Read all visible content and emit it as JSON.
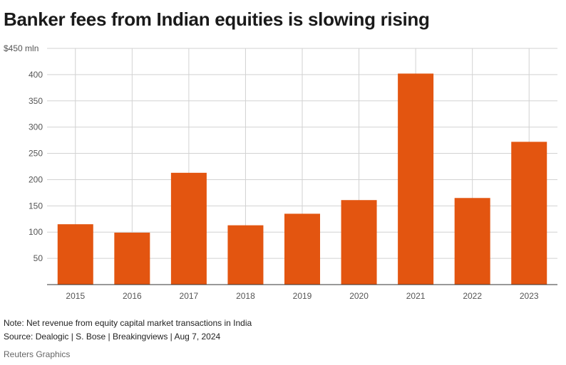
{
  "title": "Banker fees from Indian equities is slowing rising",
  "note": "Note: Net revenue from equity capital market transactions in India",
  "source": "Source: Dealogic | S. Bose | Breakingviews | Aug 7, 2024",
  "credit": "Reuters Graphics",
  "colors": {
    "bar": "#e35510",
    "grid": "#d2d2d2",
    "axis": "#333333",
    "tick_text": "#555555"
  },
  "chart_data": {
    "type": "bar",
    "categories": [
      "2015",
      "2016",
      "2017",
      "2018",
      "2019",
      "2020",
      "2021",
      "2022",
      "2023"
    ],
    "values": [
      115,
      99,
      213,
      113,
      135,
      161,
      402,
      165,
      272
    ],
    "ylim": [
      0,
      450
    ],
    "yticks": [
      50,
      100,
      150,
      200,
      250,
      300,
      350,
      400,
      450
    ],
    "ytick_labels": [
      "50",
      "100",
      "150",
      "200",
      "250",
      "300",
      "350",
      "400",
      "$450 mln"
    ],
    "grid": true
  }
}
